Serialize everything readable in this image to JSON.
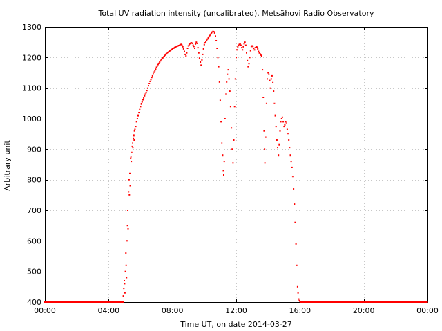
{
  "chart_data": {
    "type": "scatter",
    "title": "Total UV radiation intensity (uncalibrated). Metsähovi Radio Observatory",
    "xlabel": "Time UT, on date 2014-03-27",
    "ylabel": "Arbitrary unit",
    "xlim": [
      "00:00",
      "24:00"
    ],
    "ylim": [
      400,
      1300
    ],
    "x_ticks": [
      "00:00",
      "04:00",
      "08:00",
      "12:00",
      "16:00",
      "20:00",
      "00:00"
    ],
    "y_ticks": [
      400,
      500,
      600,
      700,
      800,
      900,
      1000,
      1100,
      1200,
      1300
    ],
    "grid": true,
    "marker_color": "#ff0000",
    "x_unit": "hours UT",
    "series": [
      {
        "values": [
          [
            4.9,
            400
          ],
          [
            4.92,
            420
          ],
          [
            4.95,
            445
          ],
          [
            4.98,
            470
          ],
          [
            5.0,
            460
          ],
          [
            5.02,
            430
          ],
          [
            5.05,
            500
          ],
          [
            5.08,
            560
          ],
          [
            5.1,
            520
          ],
          [
            5.12,
            480
          ],
          [
            5.15,
            600
          ],
          [
            5.18,
            650
          ],
          [
            5.2,
            700
          ],
          [
            5.22,
            640
          ],
          [
            5.25,
            760
          ],
          [
            5.28,
            800
          ],
          [
            5.3,
            750
          ],
          [
            5.33,
            820
          ],
          [
            5.35,
            780
          ],
          [
            5.38,
            870
          ],
          [
            5.4,
            875
          ],
          [
            5.42,
            860
          ],
          [
            5.45,
            890
          ],
          [
            5.48,
            910
          ],
          [
            5.5,
            920
          ],
          [
            5.52,
            905
          ],
          [
            5.55,
            935
          ],
          [
            5.58,
            945
          ],
          [
            5.6,
            930
          ],
          [
            5.62,
            960
          ],
          [
            5.65,
            965
          ],
          [
            5.7,
            975
          ],
          [
            5.75,
            990
          ],
          [
            5.8,
            1000
          ],
          [
            5.85,
            1010
          ],
          [
            5.9,
            1020
          ],
          [
            5.95,
            1030
          ],
          [
            6.0,
            1040
          ],
          [
            6.05,
            1048
          ],
          [
            6.1,
            1055
          ],
          [
            6.15,
            1062
          ],
          [
            6.2,
            1068
          ],
          [
            6.25,
            1075
          ],
          [
            6.3,
            1080
          ],
          [
            6.35,
            1085
          ],
          [
            6.4,
            1092
          ],
          [
            6.45,
            1100
          ],
          [
            6.5,
            1108
          ],
          [
            6.55,
            1115
          ],
          [
            6.6,
            1122
          ],
          [
            6.65,
            1128
          ],
          [
            6.7,
            1135
          ],
          [
            6.75,
            1140
          ],
          [
            6.8,
            1146
          ],
          [
            6.85,
            1152
          ],
          [
            6.9,
            1157
          ],
          [
            6.95,
            1162
          ],
          [
            7.0,
            1168
          ],
          [
            7.05,
            1172
          ],
          [
            7.1,
            1177
          ],
          [
            7.15,
            1181
          ],
          [
            7.2,
            1185
          ],
          [
            7.25,
            1189
          ],
          [
            7.3,
            1193
          ],
          [
            7.35,
            1196
          ],
          [
            7.4,
            1199
          ],
          [
            7.45,
            1202
          ],
          [
            7.5,
            1205
          ],
          [
            7.55,
            1208
          ],
          [
            7.6,
            1211
          ],
          [
            7.65,
            1213
          ],
          [
            7.7,
            1216
          ],
          [
            7.75,
            1218
          ],
          [
            7.8,
            1220
          ],
          [
            7.85,
            1222
          ],
          [
            7.9,
            1224
          ],
          [
            7.95,
            1226
          ],
          [
            8.0,
            1228
          ],
          [
            8.05,
            1230
          ],
          [
            8.1,
            1231
          ],
          [
            8.15,
            1233
          ],
          [
            8.2,
            1234
          ],
          [
            8.25,
            1236
          ],
          [
            8.3,
            1237
          ],
          [
            8.35,
            1238
          ],
          [
            8.4,
            1239
          ],
          [
            8.45,
            1240
          ],
          [
            8.5,
            1242
          ],
          [
            8.55,
            1243
          ],
          [
            8.6,
            1240
          ],
          [
            8.65,
            1235
          ],
          [
            8.7,
            1228
          ],
          [
            8.75,
            1220
          ],
          [
            8.8,
            1210
          ],
          [
            8.85,
            1205
          ],
          [
            8.9,
            1215
          ],
          [
            8.95,
            1230
          ],
          [
            9.0,
            1238
          ],
          [
            9.05,
            1242
          ],
          [
            9.1,
            1245
          ],
          [
            9.15,
            1247
          ],
          [
            9.2,
            1248
          ],
          [
            9.25,
            1246
          ],
          [
            9.3,
            1240
          ],
          [
            9.35,
            1236
          ],
          [
            9.4,
            1230
          ],
          [
            9.45,
            1244
          ],
          [
            9.5,
            1250
          ],
          [
            9.55,
            1246
          ],
          [
            9.6,
            1232
          ],
          [
            9.65,
            1215
          ],
          [
            9.7,
            1198
          ],
          [
            9.75,
            1185
          ],
          [
            9.8,
            1175
          ],
          [
            9.85,
            1192
          ],
          [
            9.9,
            1210
          ],
          [
            9.95,
            1228
          ],
          [
            10.0,
            1242
          ],
          [
            10.05,
            1248
          ],
          [
            10.1,
            1252
          ],
          [
            10.15,
            1256
          ],
          [
            10.2,
            1260
          ],
          [
            10.25,
            1264
          ],
          [
            10.3,
            1268
          ],
          [
            10.35,
            1272
          ],
          [
            10.4,
            1276
          ],
          [
            10.45,
            1280
          ],
          [
            10.5,
            1283
          ],
          [
            10.55,
            1285
          ],
          [
            10.6,
            1284
          ],
          [
            10.65,
            1280
          ],
          [
            10.7,
            1270
          ],
          [
            10.75,
            1255
          ],
          [
            10.8,
            1230
          ],
          [
            10.85,
            1200
          ],
          [
            10.9,
            1170
          ],
          [
            10.95,
            1120
          ],
          [
            11.0,
            1060
          ],
          [
            11.05,
            990
          ],
          [
            11.1,
            920
          ],
          [
            11.15,
            880
          ],
          [
            11.2,
            830
          ],
          [
            11.22,
            815
          ],
          [
            11.25,
            860
          ],
          [
            11.3,
            1000
          ],
          [
            11.35,
            1080
          ],
          [
            11.4,
            1120
          ],
          [
            11.45,
            1145
          ],
          [
            11.5,
            1160
          ],
          [
            11.55,
            1130
          ],
          [
            11.6,
            1090
          ],
          [
            11.65,
            1040
          ],
          [
            11.7,
            970
          ],
          [
            11.75,
            900
          ],
          [
            11.8,
            855
          ],
          [
            11.85,
            930
          ],
          [
            11.9,
            1040
          ],
          [
            11.95,
            1130
          ],
          [
            12.0,
            1200
          ],
          [
            12.05,
            1225
          ],
          [
            12.1,
            1235
          ],
          [
            12.15,
            1240
          ],
          [
            12.2,
            1243
          ],
          [
            12.25,
            1244
          ],
          [
            12.3,
            1240
          ],
          [
            12.35,
            1232
          ],
          [
            12.4,
            1225
          ],
          [
            12.45,
            1235
          ],
          [
            12.5,
            1245
          ],
          [
            12.55,
            1250
          ],
          [
            12.6,
            1240
          ],
          [
            12.65,
            1215
          ],
          [
            12.7,
            1190
          ],
          [
            12.75,
            1170
          ],
          [
            12.8,
            1180
          ],
          [
            12.85,
            1200
          ],
          [
            12.9,
            1222
          ],
          [
            12.95,
            1236
          ],
          [
            13.0,
            1238
          ],
          [
            13.05,
            1236
          ],
          [
            13.1,
            1230
          ],
          [
            13.15,
            1225
          ],
          [
            13.2,
            1232
          ],
          [
            13.25,
            1236
          ],
          [
            13.3,
            1234
          ],
          [
            13.35,
            1228
          ],
          [
            13.4,
            1220
          ],
          [
            13.45,
            1215
          ],
          [
            13.5,
            1212
          ],
          [
            13.55,
            1208
          ],
          [
            13.6,
            1205
          ],
          [
            13.65,
            1160
          ],
          [
            13.7,
            1070
          ],
          [
            13.75,
            960
          ],
          [
            13.78,
            900
          ],
          [
            13.8,
            855
          ],
          [
            13.85,
            940
          ],
          [
            13.9,
            1050
          ],
          [
            13.95,
            1130
          ],
          [
            14.0,
            1150
          ],
          [
            14.05,
            1145
          ],
          [
            14.1,
            1125
          ],
          [
            14.15,
            1100
          ],
          [
            14.2,
            1130
          ],
          [
            14.25,
            1140
          ],
          [
            14.3,
            1118
          ],
          [
            14.35,
            1090
          ],
          [
            14.4,
            1050
          ],
          [
            14.45,
            1010
          ],
          [
            14.5,
            975
          ],
          [
            14.55,
            930
          ],
          [
            14.6,
            905
          ],
          [
            14.65,
            880
          ],
          [
            14.7,
            915
          ],
          [
            14.75,
            960
          ],
          [
            14.8,
            990
          ],
          [
            14.85,
            1000
          ],
          [
            14.9,
            1005
          ],
          [
            14.95,
            990
          ],
          [
            15.0,
            975
          ],
          [
            15.05,
            980
          ],
          [
            15.1,
            990
          ],
          [
            15.15,
            985
          ],
          [
            15.2,
            965
          ],
          [
            15.25,
            950
          ],
          [
            15.3,
            930
          ],
          [
            15.35,
            905
          ],
          [
            15.4,
            880
          ],
          [
            15.45,
            860
          ],
          [
            15.5,
            840
          ],
          [
            15.55,
            810
          ],
          [
            15.6,
            770
          ],
          [
            15.65,
            720
          ],
          [
            15.7,
            660
          ],
          [
            15.75,
            590
          ],
          [
            15.8,
            520
          ],
          [
            15.85,
            450
          ],
          [
            15.88,
            430
          ],
          [
            15.92,
            410
          ],
          [
            15.96,
            405
          ],
          [
            16.0,
            402
          ],
          [
            16.05,
            400
          ]
        ]
      }
    ]
  }
}
